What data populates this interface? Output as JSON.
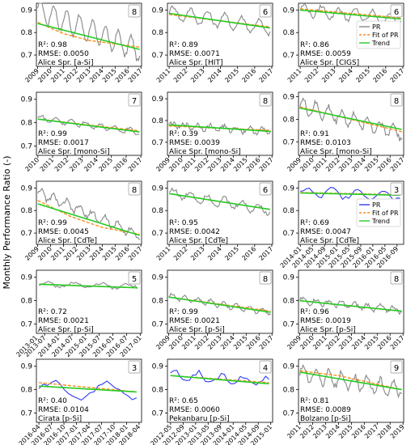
{
  "figure": {
    "ylabel": "Monthly Performance Ratio (-)",
    "colors": {
      "pr": "#888888",
      "pr_blue": "#2f3cf0",
      "fit": "#ff8c1a",
      "trend": "#22cc22"
    },
    "legend_labels": [
      "PR",
      "Fit of PR",
      "Trend"
    ]
  },
  "chart_data": [
    {
      "type": "line",
      "site": "Alice Spr. [a-Si]",
      "badge": "8",
      "r2": "R²: 0.98",
      "rmse": "RMSE: 0.0050",
      "pr_color": "gray",
      "legend": false,
      "ylim": [
        0.65,
        0.93
      ],
      "yticks": [
        "0.9",
        "0.8",
        "0.7"
      ],
      "ytick_vals": [
        0.9,
        0.8,
        0.7
      ],
      "xlim": [
        2008.9,
        2017.05
      ],
      "xticks": [
        "2009",
        "2010",
        "2011",
        "2012",
        "2013",
        "2014",
        "2015",
        "2016",
        "2017"
      ],
      "xtick_vals": [
        2009,
        2010,
        2011,
        2012,
        2013,
        2014,
        2015,
        2016,
        2017
      ],
      "pr_range": [
        2009.0,
        2016.9
      ],
      "fit": [
        [
          2009.0,
          0.845
        ],
        [
          2011.0,
          0.795
        ],
        [
          2013.0,
          0.765
        ],
        [
          2016.9,
          0.735
        ]
      ],
      "trend": [
        [
          2009.0,
          0.84
        ],
        [
          2016.9,
          0.725
        ]
      ],
      "start": 0.9,
      "end": 0.72,
      "amp": 0.05,
      "noise": 0.01,
      "period": 1.0
    },
    {
      "type": "line",
      "site": "Alice Spr. [HIT]",
      "badge": "6",
      "r2": "R²: 0.89",
      "rmse": "RMSE: 0.0071",
      "pr_color": "gray",
      "legend": false,
      "ylim": [
        0.65,
        0.93
      ],
      "yticks": [
        "0.9",
        "0.8",
        "0.7"
      ],
      "ytick_vals": [
        0.9,
        0.8,
        0.7
      ],
      "xlim": [
        2010.9,
        2017.05
      ],
      "xticks": [
        "2011",
        "2012",
        "2013",
        "2014",
        "2015",
        "2016",
        "2017"
      ],
      "xtick_vals": [
        2011,
        2012,
        2013,
        2014,
        2015,
        2016,
        2017
      ],
      "pr_range": [
        2011.0,
        2016.9
      ],
      "fit": [
        [
          2011.0,
          0.88
        ],
        [
          2016.9,
          0.825
        ]
      ],
      "trend": [
        [
          2011.0,
          0.885
        ],
        [
          2016.9,
          0.82
        ]
      ],
      "start": 0.89,
      "end": 0.82,
      "amp": 0.03,
      "noise": 0.01,
      "period": 1.0
    },
    {
      "type": "line",
      "site": "Alice Spr. [CIGS]",
      "badge": "6",
      "r2": "R²: 0.86",
      "rmse": "RMSE: 0.0059",
      "pr_color": "gray",
      "legend": true,
      "ylim": [
        0.65,
        0.93
      ],
      "yticks": [
        "0.9",
        "0.8",
        "0.7"
      ],
      "ytick_vals": [
        0.9,
        0.8,
        0.7
      ],
      "xlim": [
        2010.9,
        2017.05
      ],
      "xticks": [
        "2011",
        "2012",
        "2013",
        "2014",
        "2015",
        "2016",
        "2017"
      ],
      "xtick_vals": [
        2011,
        2012,
        2013,
        2014,
        2015,
        2016,
        2017
      ],
      "pr_range": [
        2011.0,
        2016.9
      ],
      "fit": [
        [
          2011.0,
          0.905
        ],
        [
          2016.9,
          0.865
        ]
      ],
      "trend": [
        [
          2011.0,
          0.9
        ],
        [
          2016.9,
          0.86
        ]
      ],
      "start": 0.9,
      "end": 0.86,
      "amp": 0.025,
      "noise": 0.01,
      "period": 1.0
    },
    {
      "type": "line",
      "site": "Alice Spr. [mono-Si]",
      "badge": "7",
      "r2": "R²: 0.99",
      "rmse": "RMSE: 0.0017",
      "pr_color": "gray",
      "legend": false,
      "ylim": [
        0.66,
        0.93
      ],
      "yticks": [
        "0.9",
        "0.8",
        "0.7"
      ],
      "ytick_vals": [
        0.9,
        0.8,
        0.7
      ],
      "xlim": [
        2009.9,
        2017.05
      ],
      "xticks": [
        "2010",
        "2011",
        "2012",
        "2013",
        "2014",
        "2015",
        "2016",
        "2017"
      ],
      "xtick_vals": [
        2010,
        2011,
        2012,
        2013,
        2014,
        2015,
        2016,
        2017
      ],
      "pr_range": [
        2010.0,
        2016.9
      ],
      "fit": [
        [
          2010.0,
          0.815
        ],
        [
          2016.9,
          0.765
        ]
      ],
      "trend": [
        [
          2010.0,
          0.815
        ],
        [
          2016.9,
          0.76
        ]
      ],
      "start": 0.82,
      "end": 0.76,
      "amp": 0.012,
      "noise": 0.005,
      "period": 1.0
    },
    {
      "type": "line",
      "site": "Alice Spr. [mono-Si]",
      "badge": "8",
      "r2": "R²: 0.39",
      "rmse": "RMSE: 0.0039",
      "pr_color": "gray",
      "legend": false,
      "ylim": [
        0.64,
        0.93
      ],
      "yticks": [
        "0.9",
        "0.8",
        "0.7"
      ],
      "ytick_vals": [
        0.9,
        0.8,
        0.7
      ],
      "xlim": [
        2008.9,
        2017.05
      ],
      "xticks": [
        "2009",
        "2010",
        "2011",
        "2012",
        "2013",
        "2014",
        "2015",
        "2016",
        "2017"
      ],
      "xtick_vals": [
        2009,
        2010,
        2011,
        2012,
        2013,
        2014,
        2015,
        2016,
        2017
      ],
      "pr_range": [
        2009.0,
        2016.9
      ],
      "fit": [
        [
          2009.0,
          0.775
        ],
        [
          2016.9,
          0.755
        ]
      ],
      "trend": [
        [
          2009.0,
          0.78
        ],
        [
          2016.9,
          0.75
        ]
      ],
      "start": 0.78,
      "end": 0.75,
      "amp": 0.012,
      "noise": 0.01,
      "period": 1.0
    },
    {
      "type": "line",
      "site": "Alice Spr. [mono-Si]",
      "badge": "8",
      "r2": "R²: 0.91",
      "rmse": "RMSE: 0.0103",
      "pr_color": "gray",
      "legend": false,
      "ylim": [
        0.64,
        0.92
      ],
      "yticks": [
        "0.9",
        "0.8",
        "0.7"
      ],
      "ytick_vals": [
        0.9,
        0.8,
        0.7
      ],
      "xlim": [
        2008.9,
        2017.05
      ],
      "xticks": [
        "2009",
        "2010",
        "2011",
        "2012",
        "2013",
        "2014",
        "2015",
        "2016",
        "2017"
      ],
      "xtick_vals": [
        2009,
        2010,
        2011,
        2012,
        2013,
        2014,
        2015,
        2016,
        2017
      ],
      "pr_range": [
        2009.0,
        2016.9
      ],
      "fit": [
        [
          2009.0,
          0.855
        ],
        [
          2016.9,
          0.745
        ]
      ],
      "trend": [
        [
          2009.0,
          0.85
        ],
        [
          2016.9,
          0.755
        ]
      ],
      "start": 0.86,
      "end": 0.74,
      "amp": 0.03,
      "noise": 0.015,
      "period": 1.0
    },
    {
      "type": "line",
      "site": "Alice Spr. [CdTe]",
      "badge": "8",
      "r2": "R²: 0.99",
      "rmse": "RMSE: 0.0045",
      "pr_color": "gray",
      "legend": false,
      "ylim": [
        0.65,
        0.93
      ],
      "yticks": [
        "0.9",
        "0.8",
        "0.7"
      ],
      "ytick_vals": [
        0.9,
        0.8,
        0.7
      ],
      "xlim": [
        2008.9,
        2017.05
      ],
      "xticks": [
        "2009",
        "2010",
        "2011",
        "2012",
        "2013",
        "2014",
        "2015",
        "2016",
        "2017"
      ],
      "xtick_vals": [
        2009,
        2010,
        2011,
        2012,
        2013,
        2014,
        2015,
        2016,
        2017
      ],
      "pr_range": [
        2009.0,
        2016.9
      ],
      "fit": [
        [
          2009.0,
          0.845
        ],
        [
          2011.5,
          0.775
        ],
        [
          2014.0,
          0.725
        ],
        [
          2016.9,
          0.695
        ]
      ],
      "trend": [
        [
          2009.0,
          0.83
        ],
        [
          2016.9,
          0.69
        ]
      ],
      "start": 0.88,
      "end": 0.69,
      "amp": 0.02,
      "noise": 0.01,
      "period": 1.0
    },
    {
      "type": "line",
      "site": "Alice Spr. [CdTe]",
      "badge": "6",
      "r2": "R²: 0.95",
      "rmse": "RMSE: 0.0042",
      "pr_color": "gray",
      "legend": false,
      "ylim": [
        0.65,
        0.93
      ],
      "yticks": [
        "0.9",
        "0.8",
        "0.7"
      ],
      "ytick_vals": [
        0.9,
        0.8,
        0.7
      ],
      "xlim": [
        2010.9,
        2017.05
      ],
      "xticks": [
        "2011",
        "2012",
        "2013",
        "2014",
        "2015",
        "2016",
        "2017"
      ],
      "xtick_vals": [
        2011,
        2012,
        2013,
        2014,
        2015,
        2016,
        2017
      ],
      "pr_range": [
        2011.0,
        2016.9
      ],
      "fit": [
        [
          2011.0,
          0.875
        ],
        [
          2016.9,
          0.805
        ]
      ],
      "trend": [
        [
          2011.0,
          0.875
        ],
        [
          2016.9,
          0.805
        ]
      ],
      "start": 0.88,
      "end": 0.8,
      "amp": 0.02,
      "noise": 0.01,
      "period": 1.0
    },
    {
      "type": "line",
      "site": "Alice Spr. [CdTe]",
      "badge": "3",
      "r2": "R²: 0.69",
      "rmse": "RMSE: 0.0047",
      "pr_color": "blue",
      "legend": true,
      "ylim": [
        0.65,
        0.93
      ],
      "yticks": [
        "0.9",
        "0.8",
        "0.7"
      ],
      "ytick_vals": [
        0.9,
        0.8,
        0.7
      ],
      "xlim": [
        2013.95,
        2016.85
      ],
      "xticks": [
        "2014-01",
        "2014-05",
        "2014-09",
        "2015-01",
        "2015-05",
        "2015-09",
        "2016-01",
        "2016-05",
        "2016-09"
      ],
      "xtick_vals": [
        2014.0,
        2014.333,
        2014.667,
        2015.0,
        2015.333,
        2015.667,
        2016.0,
        2016.333,
        2016.667
      ],
      "pr_range": [
        2014.0,
        2016.75
      ],
      "fit": [
        [
          2014.0,
          0.88
        ],
        [
          2016.75,
          0.87
        ]
      ],
      "trend": [
        [
          2014.0,
          0.878
        ],
        [
          2016.75,
          0.868
        ]
      ],
      "start": 0.88,
      "end": 0.87,
      "amp": 0.02,
      "noise": 0.01,
      "period": 0.7
    },
    {
      "type": "line",
      "site": "Alice Spr. [p-Si]",
      "badge": "5",
      "r2": "R²: 0.72",
      "rmse": "RMSE: 0.0021",
      "pr_color": "gray",
      "legend": false,
      "ylim": [
        0.66,
        0.93
      ],
      "yticks": [
        "0.9",
        "0.8",
        "0.7"
      ],
      "ytick_vals": [
        0.9,
        0.8,
        0.7
      ],
      "xlim": [
        2013.2,
        2017.05
      ],
      "xticks": [
        "2013-07",
        "2014-01",
        "2014-07",
        "2015-01",
        "2015-07",
        "2016-01",
        "2016-07",
        "2017-01"
      ],
      "xtick_vals": [
        2013.5,
        2014.0,
        2014.5,
        2015.0,
        2015.5,
        2016.0,
        2016.5,
        2017.0
      ],
      "xticks_extra": "2013-01",
      "pr_range": [
        2013.3,
        2016.9
      ],
      "fit": [
        [
          2013.3,
          0.87
        ],
        [
          2016.9,
          0.855
        ]
      ],
      "trend": [
        [
          2013.3,
          0.87
        ],
        [
          2016.9,
          0.855
        ]
      ],
      "start": 0.87,
      "end": 0.86,
      "amp": 0.01,
      "noise": 0.006,
      "period": 1.0
    },
    {
      "type": "line",
      "site": "Alice Spr. [p-Si]",
      "badge": "8",
      "r2": "R²: 0.99",
      "rmse": "RMSE: 0.0021",
      "pr_color": "gray",
      "legend": false,
      "ylim": [
        0.66,
        0.93
      ],
      "yticks": [
        "0.9",
        "0.8",
        "0.7"
      ],
      "ytick_vals": [
        0.9,
        0.8,
        0.7
      ],
      "xlim": [
        2008.9,
        2017.05
      ],
      "xticks": [
        "2009",
        "2010",
        "2011",
        "2012",
        "2013",
        "2014",
        "2015",
        "2016",
        "2017"
      ],
      "xtick_vals": [
        2009,
        2010,
        2011,
        2012,
        2013,
        2014,
        2015,
        2016,
        2017
      ],
      "pr_range": [
        2009.0,
        2016.9
      ],
      "fit": [
        [
          2009.0,
          0.815
        ],
        [
          2016.9,
          0.755
        ]
      ],
      "trend": [
        [
          2009.0,
          0.815
        ],
        [
          2016.9,
          0.75
        ]
      ],
      "start": 0.82,
      "end": 0.75,
      "amp": 0.012,
      "noise": 0.006,
      "period": 1.0
    },
    {
      "type": "line",
      "site": "Alice Spr. [p-Si]",
      "badge": "8",
      "r2": "R²: 0.96",
      "rmse": "RMSE: 0.0019",
      "pr_color": "gray",
      "legend": false,
      "ylim": [
        0.66,
        0.93
      ],
      "yticks": [
        "0.9",
        "0.8",
        "0.7"
      ],
      "ytick_vals": [
        0.9,
        0.8,
        0.7
      ],
      "xlim": [
        2008.9,
        2017.05
      ],
      "xticks": [
        "2009",
        "2010",
        "2011",
        "2012",
        "2013",
        "2014",
        "2015",
        "2016",
        "2017"
      ],
      "xtick_vals": [
        2009,
        2010,
        2011,
        2012,
        2013,
        2014,
        2015,
        2016,
        2017
      ],
      "pr_range": [
        2009.0,
        2016.9
      ],
      "fit": [
        [
          2009.0,
          0.8
        ],
        [
          2016.9,
          0.755
        ]
      ],
      "trend": [
        [
          2009.0,
          0.8
        ],
        [
          2016.9,
          0.755
        ]
      ],
      "start": 0.8,
      "end": 0.76,
      "amp": 0.012,
      "noise": 0.008,
      "period": 1.0
    },
    {
      "type": "line",
      "site": "Cirata [p-Si]",
      "badge": "3",
      "r2": "R²: 0.40",
      "rmse": "RMSE: 0.0104",
      "pr_color": "blue",
      "legend": false,
      "ylim": [
        0.66,
        0.93
      ],
      "yticks": [
        "0.9",
        "0.8",
        "0.7"
      ],
      "ytick_vals": [
        0.9,
        0.8,
        0.7
      ],
      "xlim": [
        2016.2,
        2018.3
      ],
      "xticks": [
        "2016-04",
        "2016-07",
        "2016-10",
        "2017-01",
        "2017-04",
        "2017-07",
        "2017-10",
        "2018-01",
        "2018-04"
      ],
      "xtick_vals": [
        2016.25,
        2016.5,
        2016.75,
        2017.0,
        2017.25,
        2017.5,
        2017.75,
        2018.0,
        2018.25
      ],
      "pr_range": [
        2016.25,
        2018.2
      ],
      "fit": [
        [
          2016.25,
          0.83
        ],
        [
          2018.2,
          0.79
        ]
      ],
      "trend": [
        [
          2016.25,
          0.815
        ],
        [
          2018.2,
          0.79
        ]
      ],
      "start": 0.8,
      "end": 0.79,
      "amp": 0.035,
      "noise": 0.01,
      "period": 1.1
    },
    {
      "type": "line",
      "site": "Pekanbaru [p-Si]",
      "badge": "4",
      "r2": "R²: 0.65",
      "rmse": "RMSE: 0.0060",
      "pr_color": "blue",
      "legend": false,
      "ylim": [
        0.66,
        0.93
      ],
      "yticks": [
        "0.9",
        "0.8",
        "0.7"
      ],
      "ytick_vals": [
        0.9,
        0.8,
        0.7
      ],
      "xlim": [
        2012.25,
        2015.05
      ],
      "xticks": [
        "2012-05",
        "2012-09",
        "2013-01",
        "2013-05",
        "2013-09",
        "2014-01",
        "2014-05",
        "2014-09",
        "2015-01"
      ],
      "xtick_vals": [
        2012.333,
        2012.667,
        2013.0,
        2013.333,
        2013.667,
        2014.0,
        2014.333,
        2014.667,
        2015.0
      ],
      "pr_range": [
        2012.33,
        2014.95
      ],
      "fit": [
        [
          2012.33,
          0.86
        ],
        [
          2014.95,
          0.83
        ]
      ],
      "trend": [
        [
          2012.33,
          0.86
        ],
        [
          2014.95,
          0.825
        ]
      ],
      "start": 0.86,
      "end": 0.83,
      "amp": 0.02,
      "noise": 0.012,
      "period": 0.6
    },
    {
      "type": "line",
      "site": "Bolzano [p-Si]",
      "badge": "9",
      "r2": "R²: 0.81",
      "rmse": "RMSE: 0.0089",
      "pr_color": "gray",
      "legend": false,
      "ylim": [
        0.66,
        0.93
      ],
      "yticks": [
        "0.9",
        "0.8",
        "0.7"
      ],
      "ytick_vals": [
        0.9,
        0.8,
        0.7
      ],
      "xlim": [
        2010.9,
        2019.05
      ],
      "xticks": [
        "2011",
        "2012",
        "2013",
        "2014",
        "2015",
        "2016",
        "2017",
        "2018",
        "2019"
      ],
      "xtick_vals": [
        2011,
        2012,
        2013,
        2014,
        2015,
        2016,
        2017,
        2018,
        2019
      ],
      "pr_range": [
        2011.0,
        2018.9
      ],
      "fit": [
        [
          2011.0,
          0.88
        ],
        [
          2014.0,
          0.86
        ],
        [
          2018.9,
          0.8
        ]
      ],
      "trend": [
        [
          2011.0,
          0.875
        ],
        [
          2018.9,
          0.8
        ]
      ],
      "start": 0.87,
      "end": 0.8,
      "amp": 0.03,
      "noise": 0.015,
      "period": 1.0
    }
  ]
}
